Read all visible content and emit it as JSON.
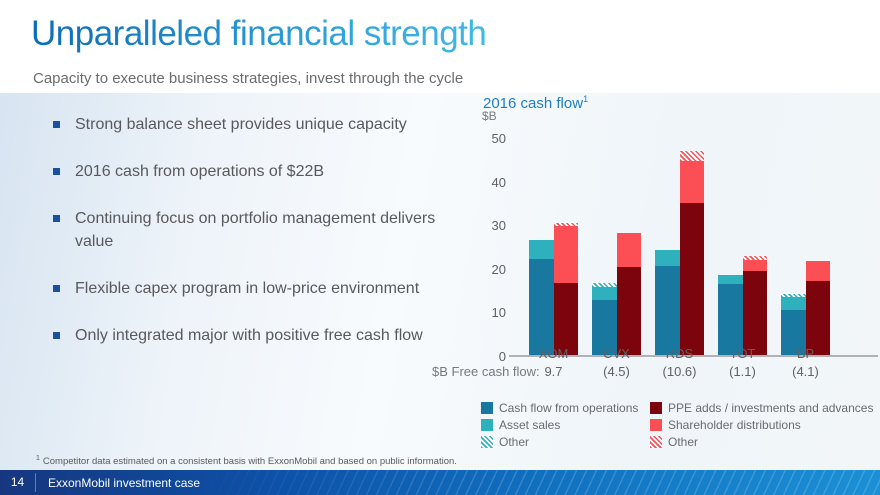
{
  "slide": {
    "title": "Unparalleled financial strength",
    "subtitle": "Capacity to execute business strategies, invest through the cycle",
    "bullets": [
      "Strong balance sheet provides unique capacity",
      "2016 cash from operations of $22B",
      "Continuing focus on portfolio management delivers value",
      "Flexible capex program in low-price environment",
      "Only integrated major with positive free cash flow"
    ],
    "footnote_marker": "1",
    "footnote": "Competitor data estimated on a consistent basis with ExxonMobil and based on public information.",
    "footer": {
      "page_number": "14",
      "label": "ExxonMobil investment case"
    }
  },
  "colors": {
    "title_gradient_start": "#0d6cb7",
    "title_gradient_end": "#41b9e6",
    "chart_title_blue": "#1b7fc4",
    "bullet_marker_blue": "#1b4fa0",
    "ops_teal": "#1878a0",
    "asset_sales_teal": "#2fb0bd",
    "ppe_maroon": "#7c040c",
    "distributions_red": "#fb4f55",
    "axis_gray": "#b0b2b5",
    "footer_blue_dark": "#16377f",
    "footer_blue_light": "#1b90d5"
  },
  "chart_data": {
    "type": "bar",
    "stacked": true,
    "title": "2016 cash flow",
    "title_superscript": "1",
    "ylabel": "$B",
    "ylim": [
      0,
      50
    ],
    "yticks": [
      0,
      10,
      20,
      30,
      40,
      50
    ],
    "grid": false,
    "categories": [
      "XOM",
      "CVX",
      "RDS",
      "TOT",
      "BP"
    ],
    "series": [
      {
        "name": "Cash flow from operations",
        "bar": "sources",
        "color": "#1878a0",
        "pattern": "solid",
        "values": [
          22.0,
          12.7,
          20.5,
          16.2,
          10.3
        ]
      },
      {
        "name": "Asset sales",
        "bar": "sources",
        "color": "#2fb0bd",
        "pattern": "solid",
        "values": [
          4.3,
          3.0,
          3.6,
          2.1,
          2.9
        ]
      },
      {
        "name": "Other",
        "bar": "sources",
        "color": "#2fb0bd",
        "pattern": "hatch",
        "values": [
          0,
          0.9,
          0,
          0,
          0.8
        ]
      },
      {
        "name": "PPE adds / investments and advances",
        "bar": "uses",
        "color": "#7c040c",
        "pattern": "solid",
        "values": [
          16.6,
          20.2,
          34.8,
          19.2,
          17.0
        ]
      },
      {
        "name": "Shareholder distributions",
        "bar": "uses",
        "color": "#fb4f55",
        "pattern": "solid",
        "values": [
          13.0,
          7.9,
          9.7,
          2.7,
          4.5
        ]
      },
      {
        "name": "Other",
        "bar": "uses",
        "color": "#fb4f55",
        "pattern": "hatch",
        "values": [
          0.7,
          0,
          2.2,
          0.9,
          0
        ]
      }
    ],
    "free_cash_flow": {
      "label": "$B Free cash flow:",
      "values": [
        "9.7",
        "(4.5)",
        "(10.6)",
        "(1.1)",
        "(4.1)"
      ]
    },
    "legend_position": "bottom"
  }
}
